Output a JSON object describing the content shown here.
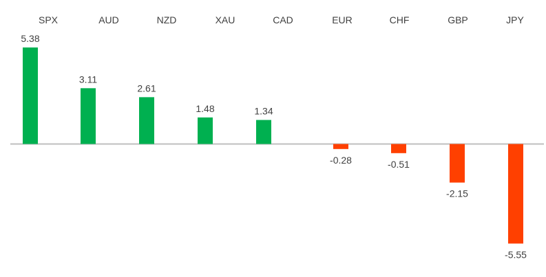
{
  "chart_data": {
    "type": "bar",
    "title": "",
    "xlabel": "",
    "ylabel": "",
    "categories": [
      "SPX",
      "AUD",
      "NZD",
      "XAU",
      "CAD",
      "EUR",
      "CHF",
      "GBP",
      "JPY"
    ],
    "values": [
      5.38,
      3.11,
      2.61,
      1.48,
      1.34,
      -0.28,
      -0.51,
      -2.15,
      -5.55
    ],
    "data_labels": [
      "5.38",
      "3.11",
      "2.61",
      "1.48",
      "1.34",
      "-0.28",
      "-0.51",
      "-2.15",
      "-5.55"
    ],
    "ylim": [
      -5.55,
      5.38
    ],
    "grid": false,
    "legend": "none",
    "category_label_position": "top",
    "colors": {
      "positive": "#00b050",
      "negative": "#ff4000",
      "axis": "#bfbfbf"
    }
  }
}
